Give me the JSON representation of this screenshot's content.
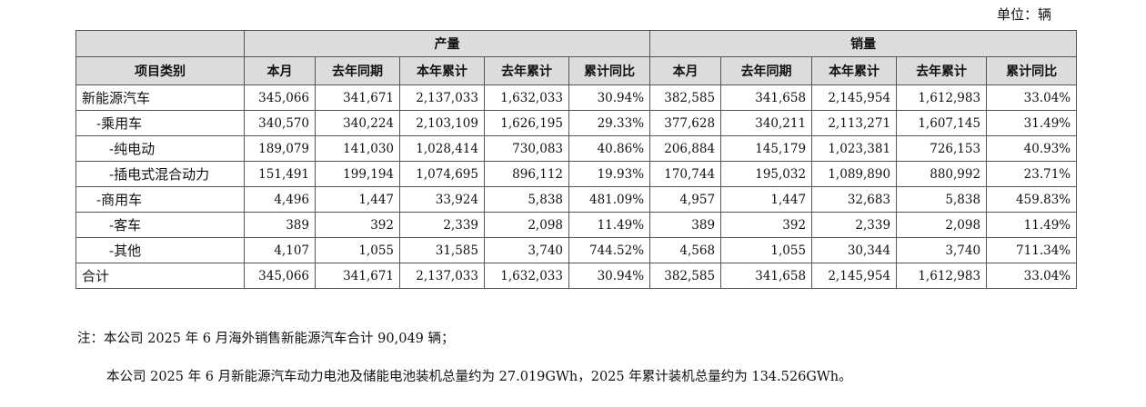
{
  "unit_label": "单位：辆",
  "table": {
    "corner_header": "项目类别",
    "group_headers": [
      "产量",
      "销量"
    ],
    "column_headers": [
      "本月",
      "去年同期",
      "本年累计",
      "去年累计",
      "累计同比",
      "本月",
      "去年同期",
      "本年累计",
      "去年累计",
      "累计同比"
    ],
    "rows": [
      {
        "category": "新能源汽车",
        "level": 0,
        "values": [
          "345,066",
          "341,671",
          "2,137,033",
          "1,632,033",
          "30.94%",
          "382,585",
          "341,658",
          "2,145,954",
          "1,612,983",
          "33.04%"
        ]
      },
      {
        "category": "-乘用车",
        "level": 1,
        "values": [
          "340,570",
          "340,224",
          "2,103,109",
          "1,626,195",
          "29.33%",
          "377,628",
          "340,211",
          "2,113,271",
          "1,607,145",
          "31.49%"
        ]
      },
      {
        "category": "-纯电动",
        "level": 2,
        "values": [
          "189,079",
          "141,030",
          "1,028,414",
          "730,083",
          "40.86%",
          "206,884",
          "145,179",
          "1,023,381",
          "726,153",
          "40.93%"
        ]
      },
      {
        "category": "-插电式混合动力",
        "level": 2,
        "values": [
          "151,491",
          "199,194",
          "1,074,695",
          "896,112",
          "19.93%",
          "170,744",
          "195,032",
          "1,089,890",
          "880,992",
          "23.71%"
        ]
      },
      {
        "category": "-商用车",
        "level": 1,
        "values": [
          "4,496",
          "1,447",
          "33,924",
          "5,838",
          "481.09%",
          "4,957",
          "1,447",
          "32,683",
          "5,838",
          "459.83%"
        ]
      },
      {
        "category": "-客车",
        "level": 2,
        "values": [
          "389",
          "392",
          "2,339",
          "2,098",
          "11.49%",
          "389",
          "392",
          "2,339",
          "2,098",
          "11.49%"
        ]
      },
      {
        "category": "-其他",
        "level": 2,
        "values": [
          "4,107",
          "1,055",
          "31,585",
          "3,740",
          "744.52%",
          "4,568",
          "1,055",
          "30,344",
          "3,740",
          "711.34%"
        ]
      },
      {
        "category": "合计",
        "level": 0,
        "values": [
          "345,066",
          "341,671",
          "2,137,033",
          "1,632,033",
          "30.94%",
          "382,585",
          "341,658",
          "2,145,954",
          "1,612,983",
          "33.04%"
        ]
      }
    ]
  },
  "notes": [
    "注：本公司 2025 年 6 月海外销售新能源汽车合计 90,049 辆；",
    "本公司 2025 年 6 月新能源汽车动力电池及储能电池装机总量约为 27.019GWh，2025 年累计装机总量约为 134.526GWh。"
  ]
}
